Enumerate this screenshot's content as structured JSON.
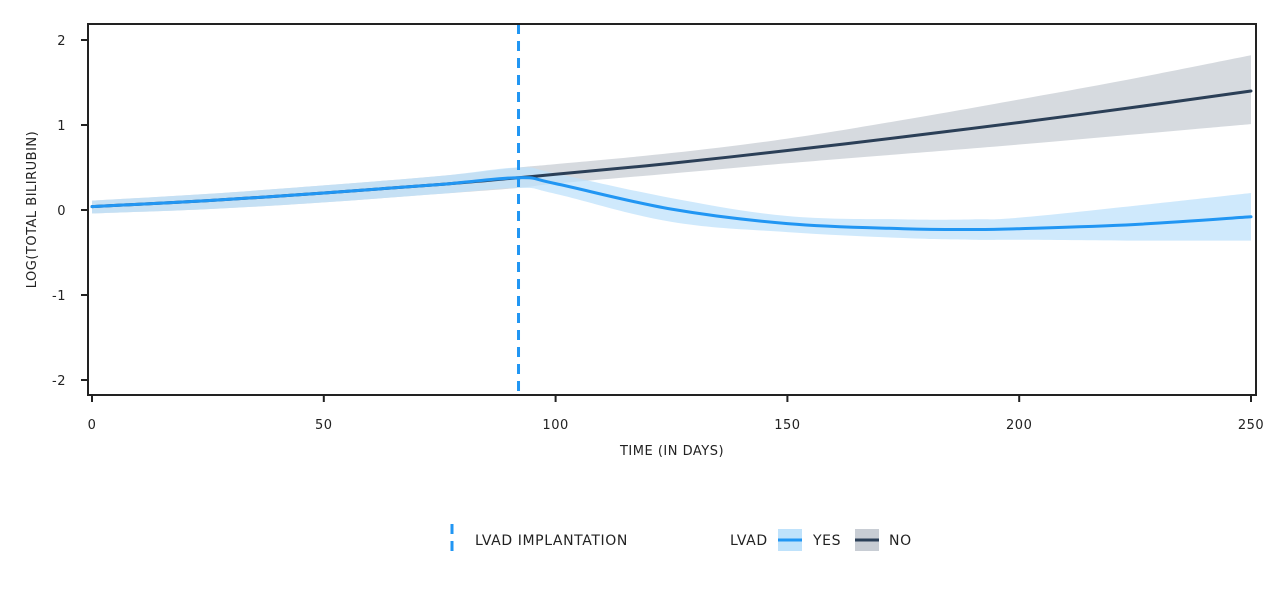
{
  "chart_data": {
    "type": "line",
    "xlabel": "TIME (IN DAYS)",
    "ylabel": "LOG(TOTAL BILIRUBIN)",
    "xlim": [
      0,
      250
    ],
    "ylim": [
      -2.2,
      2.2
    ],
    "xticks": [
      0,
      50,
      100,
      150,
      200,
      250
    ],
    "yticks": [
      -2,
      -1,
      0,
      1,
      2
    ],
    "xtick_labels": [
      "0",
      "50",
      "100",
      "150",
      "200",
      "250"
    ],
    "ytick_labels": [
      "-2",
      "-1",
      "0",
      "1",
      "2"
    ],
    "grid": false,
    "legend_position": "bottom",
    "vline": {
      "x": 92,
      "label": "LVAD IMPLANTATION",
      "color": "#2196f3",
      "style": "dashed"
    },
    "legend_title": "LVAD",
    "series": [
      {
        "name": "YES",
        "color": "#2196f3",
        "band_color": "#bfe2fb",
        "x": [
          0,
          25,
          50,
          75,
          92,
          100,
          125,
          150,
          175,
          190,
          200,
          225,
          250
        ],
        "y": [
          0.04,
          0.11,
          0.2,
          0.3,
          0.38,
          0.31,
          0.01,
          -0.16,
          -0.22,
          -0.23,
          -0.22,
          -0.17,
          -0.08
        ],
        "lower": [
          -0.04,
          0.01,
          0.09,
          0.19,
          0.26,
          0.19,
          -0.14,
          -0.26,
          -0.33,
          -0.35,
          -0.35,
          -0.36,
          -0.36
        ],
        "upper": [
          0.11,
          0.19,
          0.29,
          0.4,
          0.5,
          0.43,
          0.14,
          -0.07,
          -0.11,
          -0.11,
          -0.09,
          0.05,
          0.2
        ]
      },
      {
        "name": "NO",
        "color": "#2b3f57",
        "band_color": "#c8cdd4",
        "x": [
          0,
          25,
          50,
          75,
          92,
          100,
          125,
          150,
          175,
          200,
          225,
          250
        ],
        "y": [
          0.04,
          0.11,
          0.2,
          0.3,
          0.38,
          0.42,
          0.55,
          0.7,
          0.86,
          1.03,
          1.21,
          1.4
        ],
        "lower": [
          -0.04,
          0.01,
          0.09,
          0.19,
          0.26,
          0.31,
          0.43,
          0.55,
          0.66,
          0.77,
          0.89,
          1.01
        ],
        "upper": [
          0.11,
          0.19,
          0.29,
          0.4,
          0.5,
          0.54,
          0.67,
          0.84,
          1.06,
          1.3,
          1.55,
          1.82
        ]
      }
    ]
  }
}
